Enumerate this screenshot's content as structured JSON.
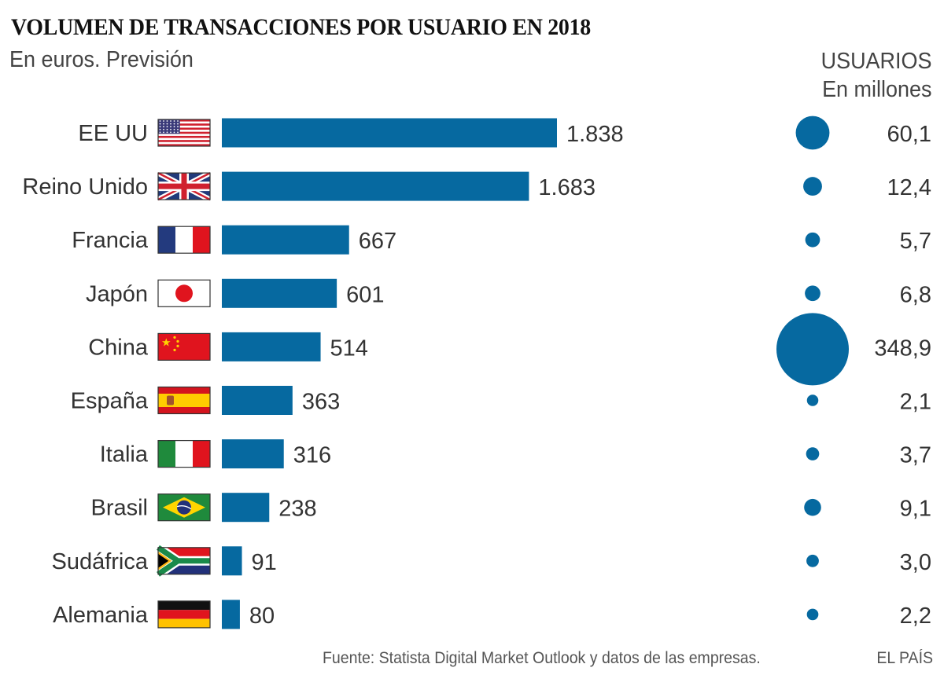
{
  "chart_data": {
    "type": "bar",
    "title": "VOLUMEN DE TRANSACCIONES POR USUARIO EN 2018",
    "subtitle": "En euros. Previsión",
    "xlabel": "",
    "ylabel": "",
    "grid": false,
    "categories": [
      "EE UU",
      "Reino Unido",
      "Francia",
      "Japón",
      "China",
      "España",
      "Italia",
      "Brasil",
      "Sudáfrica",
      "Alemania"
    ],
    "flags": [
      "us-flag",
      "uk-flag",
      "france-flag",
      "japan-flag",
      "china-flag",
      "spain-flag",
      "italy-flag",
      "brazil-flag",
      "south-africa-flag",
      "germany-flag"
    ],
    "series": [
      {
        "name": "Volumen de transacciones por usuario (euros)",
        "values": [
          1838,
          1683,
          667,
          601,
          514,
          363,
          316,
          238,
          91,
          80
        ],
        "labels": [
          "1.838",
          "1.683",
          "667",
          "601",
          "514",
          "363",
          "316",
          "238",
          "91",
          "80"
        ]
      },
      {
        "name": "Usuarios (millones)",
        "type": "bubble",
        "values": [
          60.1,
          12.4,
          5.7,
          6.8,
          348.9,
          2.1,
          3.7,
          9.1,
          3.0,
          2.2
        ],
        "labels": [
          "60,1",
          "12,4",
          "5,7",
          "6,8",
          "348,9",
          "2,1",
          "3,7",
          "9,1",
          "3,0",
          "2,2"
        ]
      }
    ],
    "users_header": {
      "line1": "USUARIOS",
      "line2": "En millones"
    },
    "source": "Fuente: Statista Digital Market Outlook y datos de las empresas.",
    "credit": "EL PAÍS",
    "colors": {
      "bar": "#0669a0",
      "text": "#333333"
    }
  }
}
